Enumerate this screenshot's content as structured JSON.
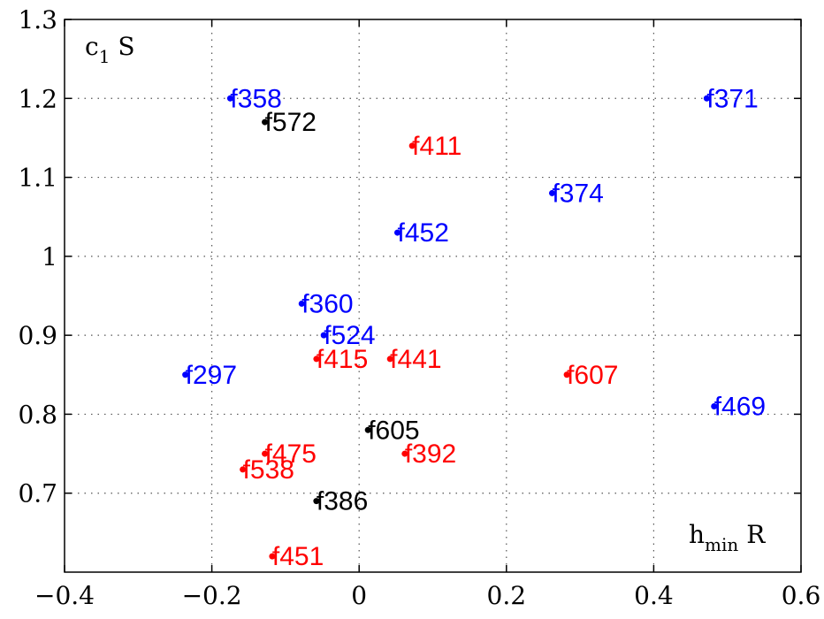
{
  "chart_data": {
    "type": "scatter",
    "title": "",
    "xlabel": {
      "main": "h",
      "sub": "min",
      "tail": " R"
    },
    "ylabel": {
      "main": "c",
      "sub": "1",
      "tail": " S"
    },
    "xlim": [
      -0.4,
      0.6
    ],
    "ylim": [
      0.6,
      1.3
    ],
    "xticks": [
      -0.4,
      -0.2,
      0,
      0.2,
      0.4,
      0.6
    ],
    "xtick_labels": [
      "−0.4",
      "−0.2",
      "0",
      "0.2",
      "0.4",
      "0.6"
    ],
    "yticks": [
      0.7,
      0.8,
      0.9,
      1.0,
      1.1,
      1.2,
      1.3
    ],
    "ytick_labels": [
      "0.7",
      "0.8",
      "0.9",
      "1",
      "1.1",
      "1.2",
      "1.3"
    ],
    "grid": true,
    "colors": {
      "blue": "#0000ff",
      "red": "#ff0000",
      "black": "#000000"
    },
    "points": [
      {
        "label": "f358",
        "x": -0.175,
        "y": 1.2,
        "color": "blue"
      },
      {
        "label": "f371",
        "x": 0.472,
        "y": 1.2,
        "color": "blue"
      },
      {
        "label": "f572",
        "x": -0.128,
        "y": 1.17,
        "color": "black"
      },
      {
        "label": "f411",
        "x": 0.072,
        "y": 1.14,
        "color": "red"
      },
      {
        "label": "f374",
        "x": 0.262,
        "y": 1.08,
        "color": "blue"
      },
      {
        "label": "f452",
        "x": 0.052,
        "y": 1.03,
        "color": "blue"
      },
      {
        "label": "f360",
        "x": -0.078,
        "y": 0.94,
        "color": "blue"
      },
      {
        "label": "f524",
        "x": -0.048,
        "y": 0.9,
        "color": "blue"
      },
      {
        "label": "f415",
        "x": -0.058,
        "y": 0.87,
        "color": "red"
      },
      {
        "label": "f441",
        "x": 0.042,
        "y": 0.87,
        "color": "red"
      },
      {
        "label": "f297",
        "x": -0.236,
        "y": 0.85,
        "color": "blue"
      },
      {
        "label": "f607",
        "x": 0.282,
        "y": 0.85,
        "color": "red"
      },
      {
        "label": "f469",
        "x": 0.482,
        "y": 0.81,
        "color": "blue"
      },
      {
        "label": "f605",
        "x": 0.012,
        "y": 0.78,
        "color": "black"
      },
      {
        "label": "f475",
        "x": -0.128,
        "y": 0.75,
        "color": "red"
      },
      {
        "label": "f392",
        "x": 0.062,
        "y": 0.75,
        "color": "red"
      },
      {
        "label": "f538",
        "x": -0.158,
        "y": 0.73,
        "color": "red"
      },
      {
        "label": "f386",
        "x": -0.058,
        "y": 0.69,
        "color": "black"
      },
      {
        "label": "f451",
        "x": -0.118,
        "y": 0.62,
        "color": "red"
      }
    ]
  }
}
